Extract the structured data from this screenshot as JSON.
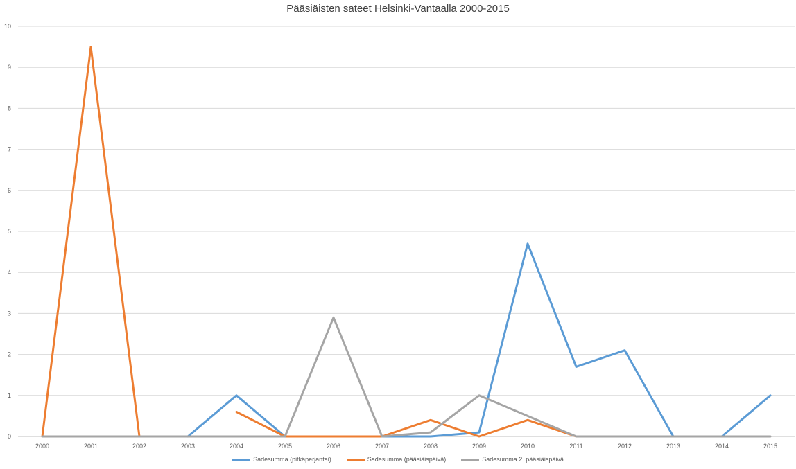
{
  "chart_data": {
    "type": "line",
    "title": "Pääsiäisten sateet Helsinki-Vantaalla 2000-2015",
    "xlabel": "",
    "ylabel": "",
    "categories": [
      "2000",
      "2001",
      "2002",
      "2003",
      "2004",
      "2005",
      "2006",
      "2007",
      "2008",
      "2009",
      "2010",
      "2011",
      "2012",
      "2013",
      "2014",
      "2015"
    ],
    "ylim": [
      0,
      10
    ],
    "yticks": [
      0,
      1,
      2,
      3,
      4,
      5,
      6,
      7,
      8,
      9,
      10
    ],
    "grid": true,
    "legend_position": "bottom",
    "series": [
      {
        "name": "Sadesumma (pitkäperjantai)",
        "color": "#5B9BD5",
        "values": [
          null,
          null,
          null,
          0,
          1,
          0,
          null,
          0,
          0,
          0.1,
          4.7,
          1.7,
          2.1,
          0,
          0,
          1
        ]
      },
      {
        "name": "Sadesumma (pääsiäispäivä)",
        "color": "#ED7D31",
        "values": [
          0,
          9.5,
          0,
          null,
          0.6,
          0,
          0,
          0,
          0.4,
          0,
          0.4,
          0,
          null,
          null,
          null,
          null
        ]
      },
      {
        "name": "Sadesumma 2. pääsiäispäivä",
        "color": "#A5A5A5",
        "values": [
          0,
          0,
          0,
          0,
          0,
          0,
          2.9,
          0,
          0.1,
          1,
          0.5,
          0,
          0,
          0,
          0,
          0
        ]
      }
    ]
  }
}
